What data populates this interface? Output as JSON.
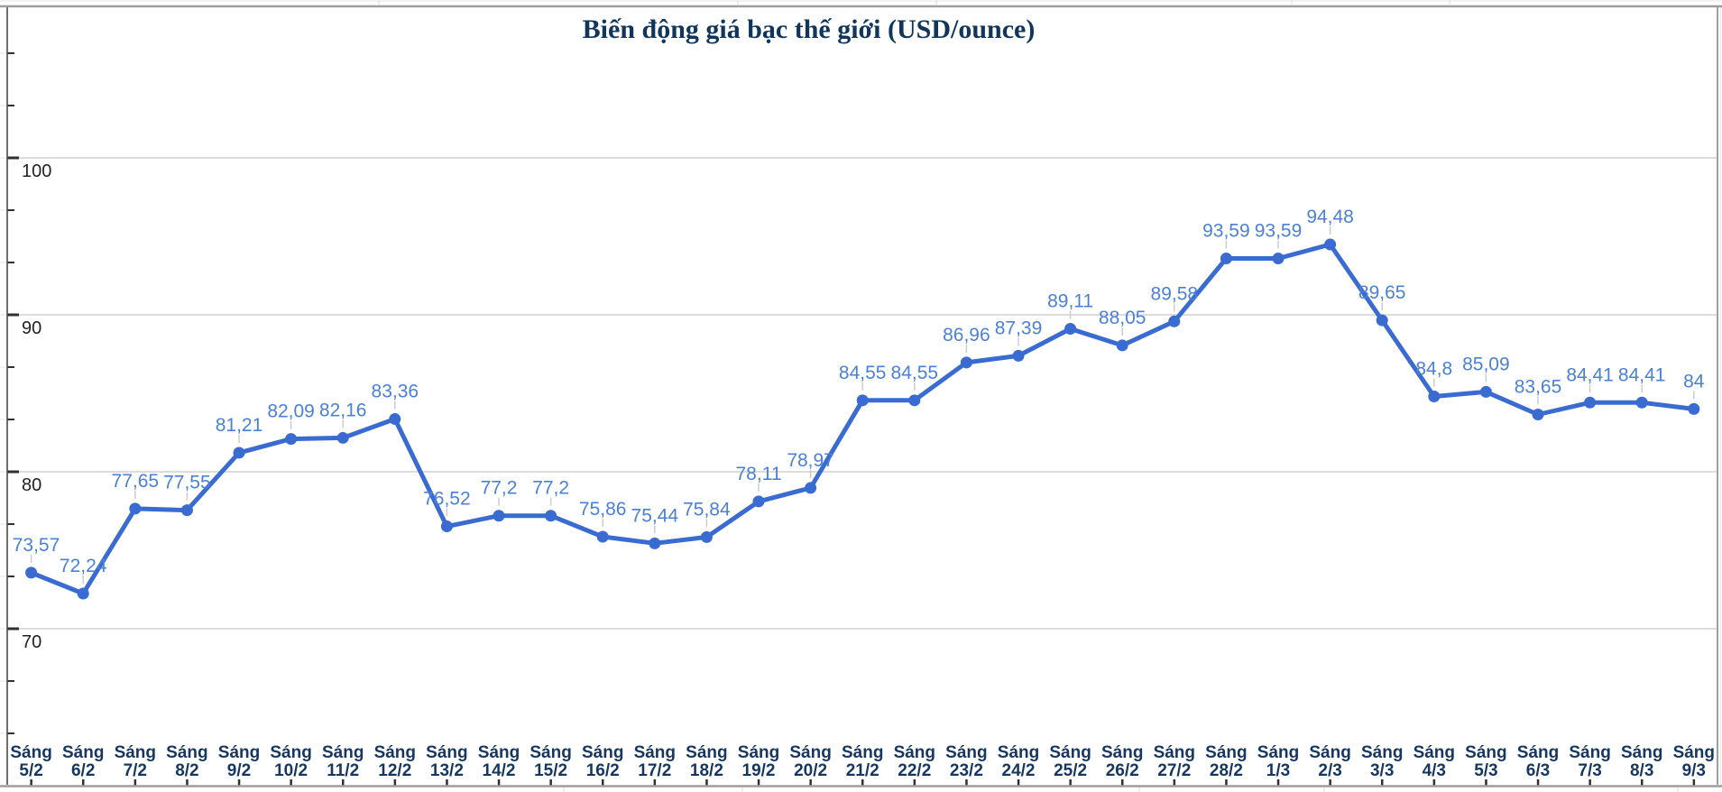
{
  "chart": {
    "title": "Biến động giá bạc thế giới (USD/ounce)"
  },
  "chart_data": {
    "type": "line",
    "title": "Biến động giá bạc thế giới (USD/ounce)",
    "x_label_prefix": "Sáng",
    "categories": [
      "5/2",
      "6/2",
      "7/2",
      "8/2",
      "9/2",
      "10/2",
      "11/2",
      "12/2",
      "13/2",
      "14/2",
      "15/2",
      "16/2",
      "17/2",
      "18/2",
      "19/2",
      "20/2",
      "21/2",
      "22/2",
      "23/2",
      "24/2",
      "25/2",
      "26/2",
      "27/2",
      "28/2",
      "1/3",
      "2/3",
      "3/3",
      "4/3",
      "5/3",
      "6/3",
      "7/3",
      "8/3",
      "9/3"
    ],
    "values": [
      73.57,
      72.24,
      77.65,
      77.55,
      81.21,
      82.09,
      82.16,
      83.36,
      76.52,
      77.2,
      77.2,
      75.86,
      75.44,
      75.84,
      78.11,
      78.97,
      84.55,
      84.55,
      86.96,
      87.39,
      89.11,
      88.05,
      89.58,
      93.59,
      93.59,
      94.48,
      89.65,
      84.8,
      85.09,
      83.65,
      84.41,
      84.41,
      84
    ],
    "value_labels": [
      "73,57",
      "72,24",
      "77,65",
      "77,55",
      "81,21",
      "82,09",
      "82,16",
      "83,36",
      "76,52",
      "77,2",
      "77,2",
      "75,86",
      "75,44",
      "75,84",
      "78,11",
      "78,97",
      "84,55",
      "84,55",
      "86,96",
      "87,39",
      "89,11",
      "88,05",
      "89,58",
      "93,59",
      "93,59",
      "94,48",
      "89,65",
      "84,8",
      "85,09",
      "83,65",
      "84,41",
      "84,41",
      "84"
    ],
    "ylim": [
      60,
      110
    ],
    "yticks_major": [
      70,
      80,
      90,
      100
    ],
    "ytick_minor_step": 3.3333,
    "grid": "horizontal-major-only",
    "legend": "none",
    "colors": {
      "series_line": "#3a6bd0",
      "series_point": "#3a6bd0",
      "data_label": "#4c80d8",
      "title_text": "#123659",
      "category_text": "#17375f",
      "axis_value_text": "#222222",
      "gridline": "#dcdcdc",
      "axis_line": "#4a4a4a",
      "tick_mark": "#303030",
      "chart_border": "#9f9f9f",
      "leader_line": "#cccccc",
      "sheet_cell_line": "#e7e7e7"
    }
  }
}
